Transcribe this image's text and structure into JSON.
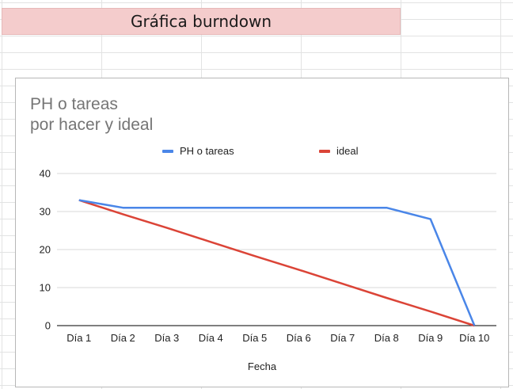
{
  "sheet": {
    "title": "Gráfica burndown"
  },
  "chart_data": {
    "type": "line",
    "title": "PH o tareas\npor hacer y ideal",
    "xlabel": "Fecha",
    "ylabel": "",
    "categories": [
      "Día 1",
      "Día 2",
      "Día 3",
      "Día 4",
      "Día 5",
      "Día 6",
      "Día 7",
      "Día 8",
      "Día 9",
      "Día 10"
    ],
    "ylim": [
      0,
      40
    ],
    "yticks": [
      0,
      10,
      20,
      30,
      40
    ],
    "grid": true,
    "legend_position": "top",
    "series": [
      {
        "name": "PH o tareas",
        "color": "#4a86e8",
        "values": [
          33,
          31,
          31,
          31,
          31,
          31,
          31,
          31,
          28,
          0
        ]
      },
      {
        "name": "ideal",
        "color": "#db4437",
        "values": [
          33,
          29.3,
          25.7,
          22,
          18.3,
          14.7,
          11,
          7.3,
          3.7,
          0
        ]
      }
    ]
  }
}
